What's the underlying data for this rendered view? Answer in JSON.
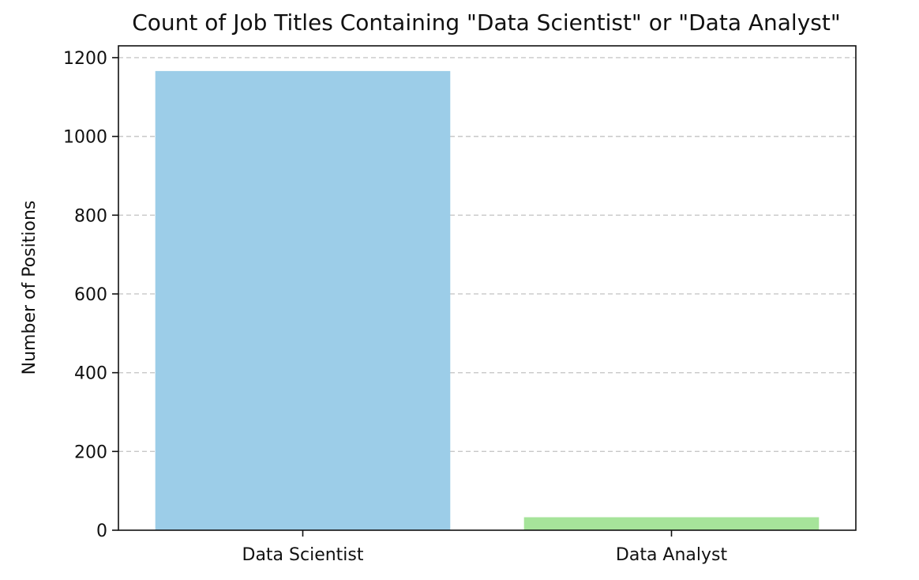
{
  "chart_data": {
    "type": "bar",
    "title": "Count of Job Titles Containing \"Data Scientist\" or \"Data Analyst\"",
    "xlabel": "",
    "ylabel": "Number of Positions",
    "categories": [
      "Data Scientist",
      "Data Analyst"
    ],
    "values": [
      1166,
      33
    ],
    "colors": [
      "#9ccde8",
      "#a6e49a"
    ],
    "ylim": [
      0,
      1230
    ],
    "yticks": [
      0,
      200,
      400,
      600,
      800,
      1000,
      1200
    ],
    "grid": "y-dashed",
    "legend": "none"
  }
}
